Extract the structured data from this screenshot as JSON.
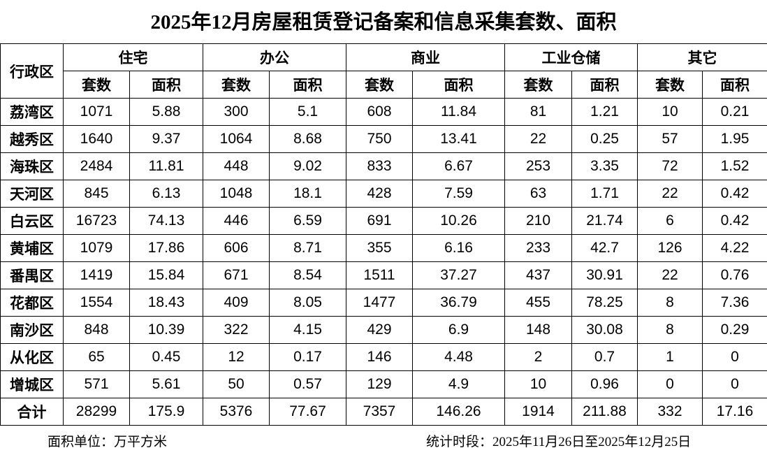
{
  "title": "2025年12月房屋租赁登记备案和信息采集套数、面积",
  "table": {
    "row_header": "行政区",
    "groups": [
      "住宅",
      "办公",
      "商业",
      "工业仓储",
      "其它"
    ],
    "subheaders": [
      "套数",
      "面积",
      "套数",
      "面积",
      "套数",
      "面积",
      "套数",
      "面积",
      "套数",
      "面积"
    ],
    "rows": [
      [
        "荔湾区",
        1071,
        5.88,
        300,
        5.1,
        608,
        11.84,
        81,
        1.21,
        10,
        0.21
      ],
      [
        "越秀区",
        1640,
        9.37,
        1064,
        8.68,
        750,
        13.41,
        22,
        0.25,
        57,
        1.95
      ],
      [
        "海珠区",
        2484,
        11.81,
        448,
        9.02,
        833,
        6.67,
        253,
        3.35,
        72,
        1.52
      ],
      [
        "天河区",
        845,
        6.13,
        1048,
        18.1,
        428,
        7.59,
        63,
        1.71,
        22,
        0.42
      ],
      [
        "白云区",
        16723,
        74.13,
        446,
        6.59,
        691,
        10.26,
        210,
        21.74,
        6,
        0.42
      ],
      [
        "黄埔区",
        1079,
        17.86,
        606,
        8.71,
        355,
        6.16,
        233,
        42.7,
        126,
        4.22
      ],
      [
        "番禺区",
        1419,
        15.84,
        671,
        8.54,
        1511,
        37.27,
        437,
        30.91,
        22,
        0.76
      ],
      [
        "花都区",
        1554,
        18.43,
        409,
        8.05,
        1477,
        36.79,
        455,
        78.25,
        8,
        7.36
      ],
      [
        "南沙区",
        848,
        10.39,
        322,
        4.15,
        429,
        6.9,
        148,
        30.08,
        8,
        0.29
      ],
      [
        "从化区",
        65,
        0.45,
        12,
        0.17,
        146,
        4.48,
        2,
        0.7,
        1,
        0
      ],
      [
        "增城区",
        571,
        5.61,
        50,
        0.57,
        129,
        4.9,
        10,
        0.96,
        0,
        0
      ],
      [
        "合计",
        28299,
        175.9,
        5376,
        77.67,
        7357,
        146.26,
        1914,
        211.88,
        332,
        17.16
      ]
    ]
  },
  "footer": {
    "unit": "面积单位：万平方米",
    "period": "统计时段：2025年11月26日至2025年12月25日"
  }
}
